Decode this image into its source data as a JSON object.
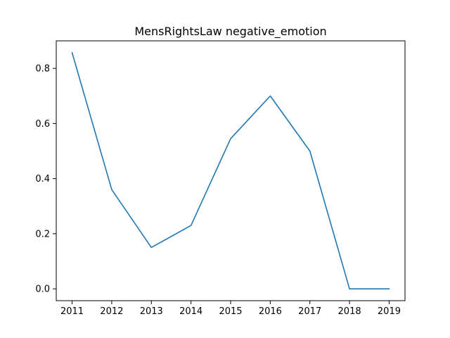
{
  "chart_data": {
    "type": "line",
    "title": "MensRightsLaw negative_emotion",
    "xlabel": "",
    "ylabel": "",
    "x": [
      2011,
      2012,
      2013,
      2014,
      2015,
      2016,
      2017,
      2018,
      2019
    ],
    "series": [
      {
        "values": [
          0.857,
          0.36,
          0.15,
          0.23,
          0.545,
          0.7,
          0.5,
          0.0,
          0.0
        ],
        "color": "#1f77b4"
      }
    ],
    "xlim": [
      2010.6,
      2019.4
    ],
    "ylim": [
      -0.043,
      0.9
    ],
    "xticks": [
      "2011",
      "2012",
      "2013",
      "2014",
      "2015",
      "2016",
      "2017",
      "2018",
      "2019"
    ],
    "yticks": [
      "0.0",
      "0.2",
      "0.4",
      "0.6",
      "0.8"
    ],
    "grid": false,
    "legend": "none"
  }
}
